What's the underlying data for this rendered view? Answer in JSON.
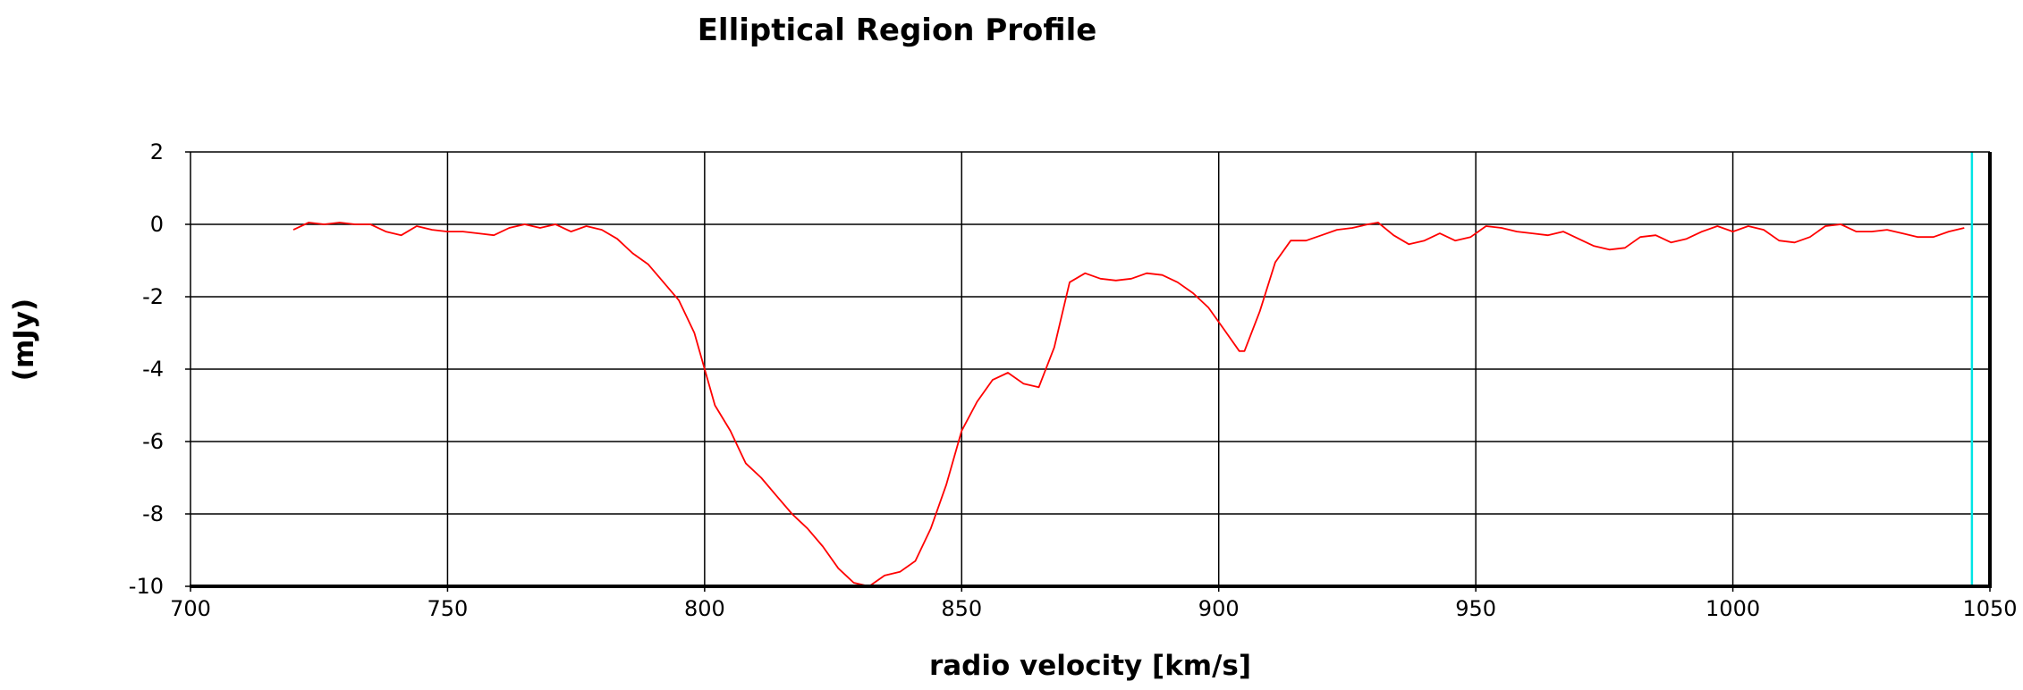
{
  "chart_data": {
    "type": "line",
    "title": "Elliptical Region Profile",
    "xlabel": "radio velocity [km/s]",
    "ylabel": "(mJy)",
    "xlim": [
      700,
      1050
    ],
    "ylim": [
      -10,
      2
    ],
    "xticks": [
      "700",
      "750",
      "800",
      "850",
      "900",
      "950",
      "1000",
      "1050"
    ],
    "yticks": [
      "2",
      "0",
      "-2",
      "-4",
      "-6",
      "-8",
      "-10"
    ],
    "grid": true,
    "colors": {
      "line": "#ff0000",
      "marker": "#00e5e5",
      "grid": "#000000"
    },
    "marker_x": 1046.5,
    "series": [
      {
        "x": [
          720,
          723,
          726,
          729,
          732,
          735,
          738,
          741,
          744,
          747,
          750,
          753,
          756,
          759,
          762,
          765,
          768,
          771,
          774,
          777,
          780,
          783,
          786,
          789,
          792,
          795,
          798,
          800,
          802,
          805,
          808,
          811,
          814,
          817,
          820,
          823,
          826,
          829,
          832,
          835,
          838,
          841,
          844,
          847,
          850,
          853,
          856,
          859,
          862,
          865,
          868,
          871,
          874,
          877,
          880,
          883,
          886,
          889,
          892,
          895,
          898,
          901,
          904,
          905,
          908,
          911,
          914,
          917,
          920,
          923,
          926,
          929,
          931,
          934,
          937,
          940,
          943,
          946,
          949,
          952,
          955,
          958,
          961,
          964,
          967,
          970,
          973,
          976,
          979,
          982,
          985,
          988,
          991,
          994,
          997,
          1000,
          1003,
          1006,
          1009,
          1012,
          1015,
          1018,
          1021,
          1024,
          1027,
          1030,
          1033,
          1036,
          1039,
          1042,
          1045
        ],
        "y": [
          -0.15,
          0.05,
          0.0,
          0.05,
          0.0,
          0.0,
          -0.2,
          -0.3,
          -0.05,
          -0.15,
          -0.2,
          -0.2,
          -0.25,
          -0.3,
          -0.1,
          0.0,
          -0.1,
          0.0,
          -0.2,
          -0.05,
          -0.15,
          -0.4,
          -0.8,
          -1.1,
          -1.6,
          -2.1,
          -3.0,
          -4.0,
          -5.0,
          -5.7,
          -6.6,
          -7.0,
          -7.5,
          -8.0,
          -8.4,
          -8.9,
          -9.5,
          -9.9,
          -10.0,
          -9.7,
          -9.6,
          -9.3,
          -8.4,
          -7.2,
          -5.7,
          -4.9,
          -4.3,
          -4.1,
          -4.4,
          -4.5,
          -3.4,
          -1.6,
          -1.35,
          -1.5,
          -1.55,
          -1.5,
          -1.35,
          -1.4,
          -1.6,
          -1.9,
          -2.3,
          -2.9,
          -3.5,
          -3.5,
          -2.4,
          -1.05,
          -0.45,
          -0.45,
          -0.3,
          -0.15,
          -0.1,
          0.0,
          0.05,
          -0.3,
          -0.55,
          -0.45,
          -0.25,
          -0.45,
          -0.35,
          -0.05,
          -0.1,
          -0.2,
          -0.25,
          -0.3,
          -0.2,
          -0.4,
          -0.6,
          -0.7,
          -0.65,
          -0.35,
          -0.3,
          -0.5,
          -0.4,
          -0.2,
          -0.05,
          -0.2,
          -0.05,
          -0.15,
          -0.45,
          -0.5,
          -0.35,
          -0.05,
          0.0,
          -0.2,
          -0.2,
          -0.15,
          -0.25,
          -0.35,
          -0.35,
          -0.2,
          -0.1
        ]
      }
    ]
  }
}
